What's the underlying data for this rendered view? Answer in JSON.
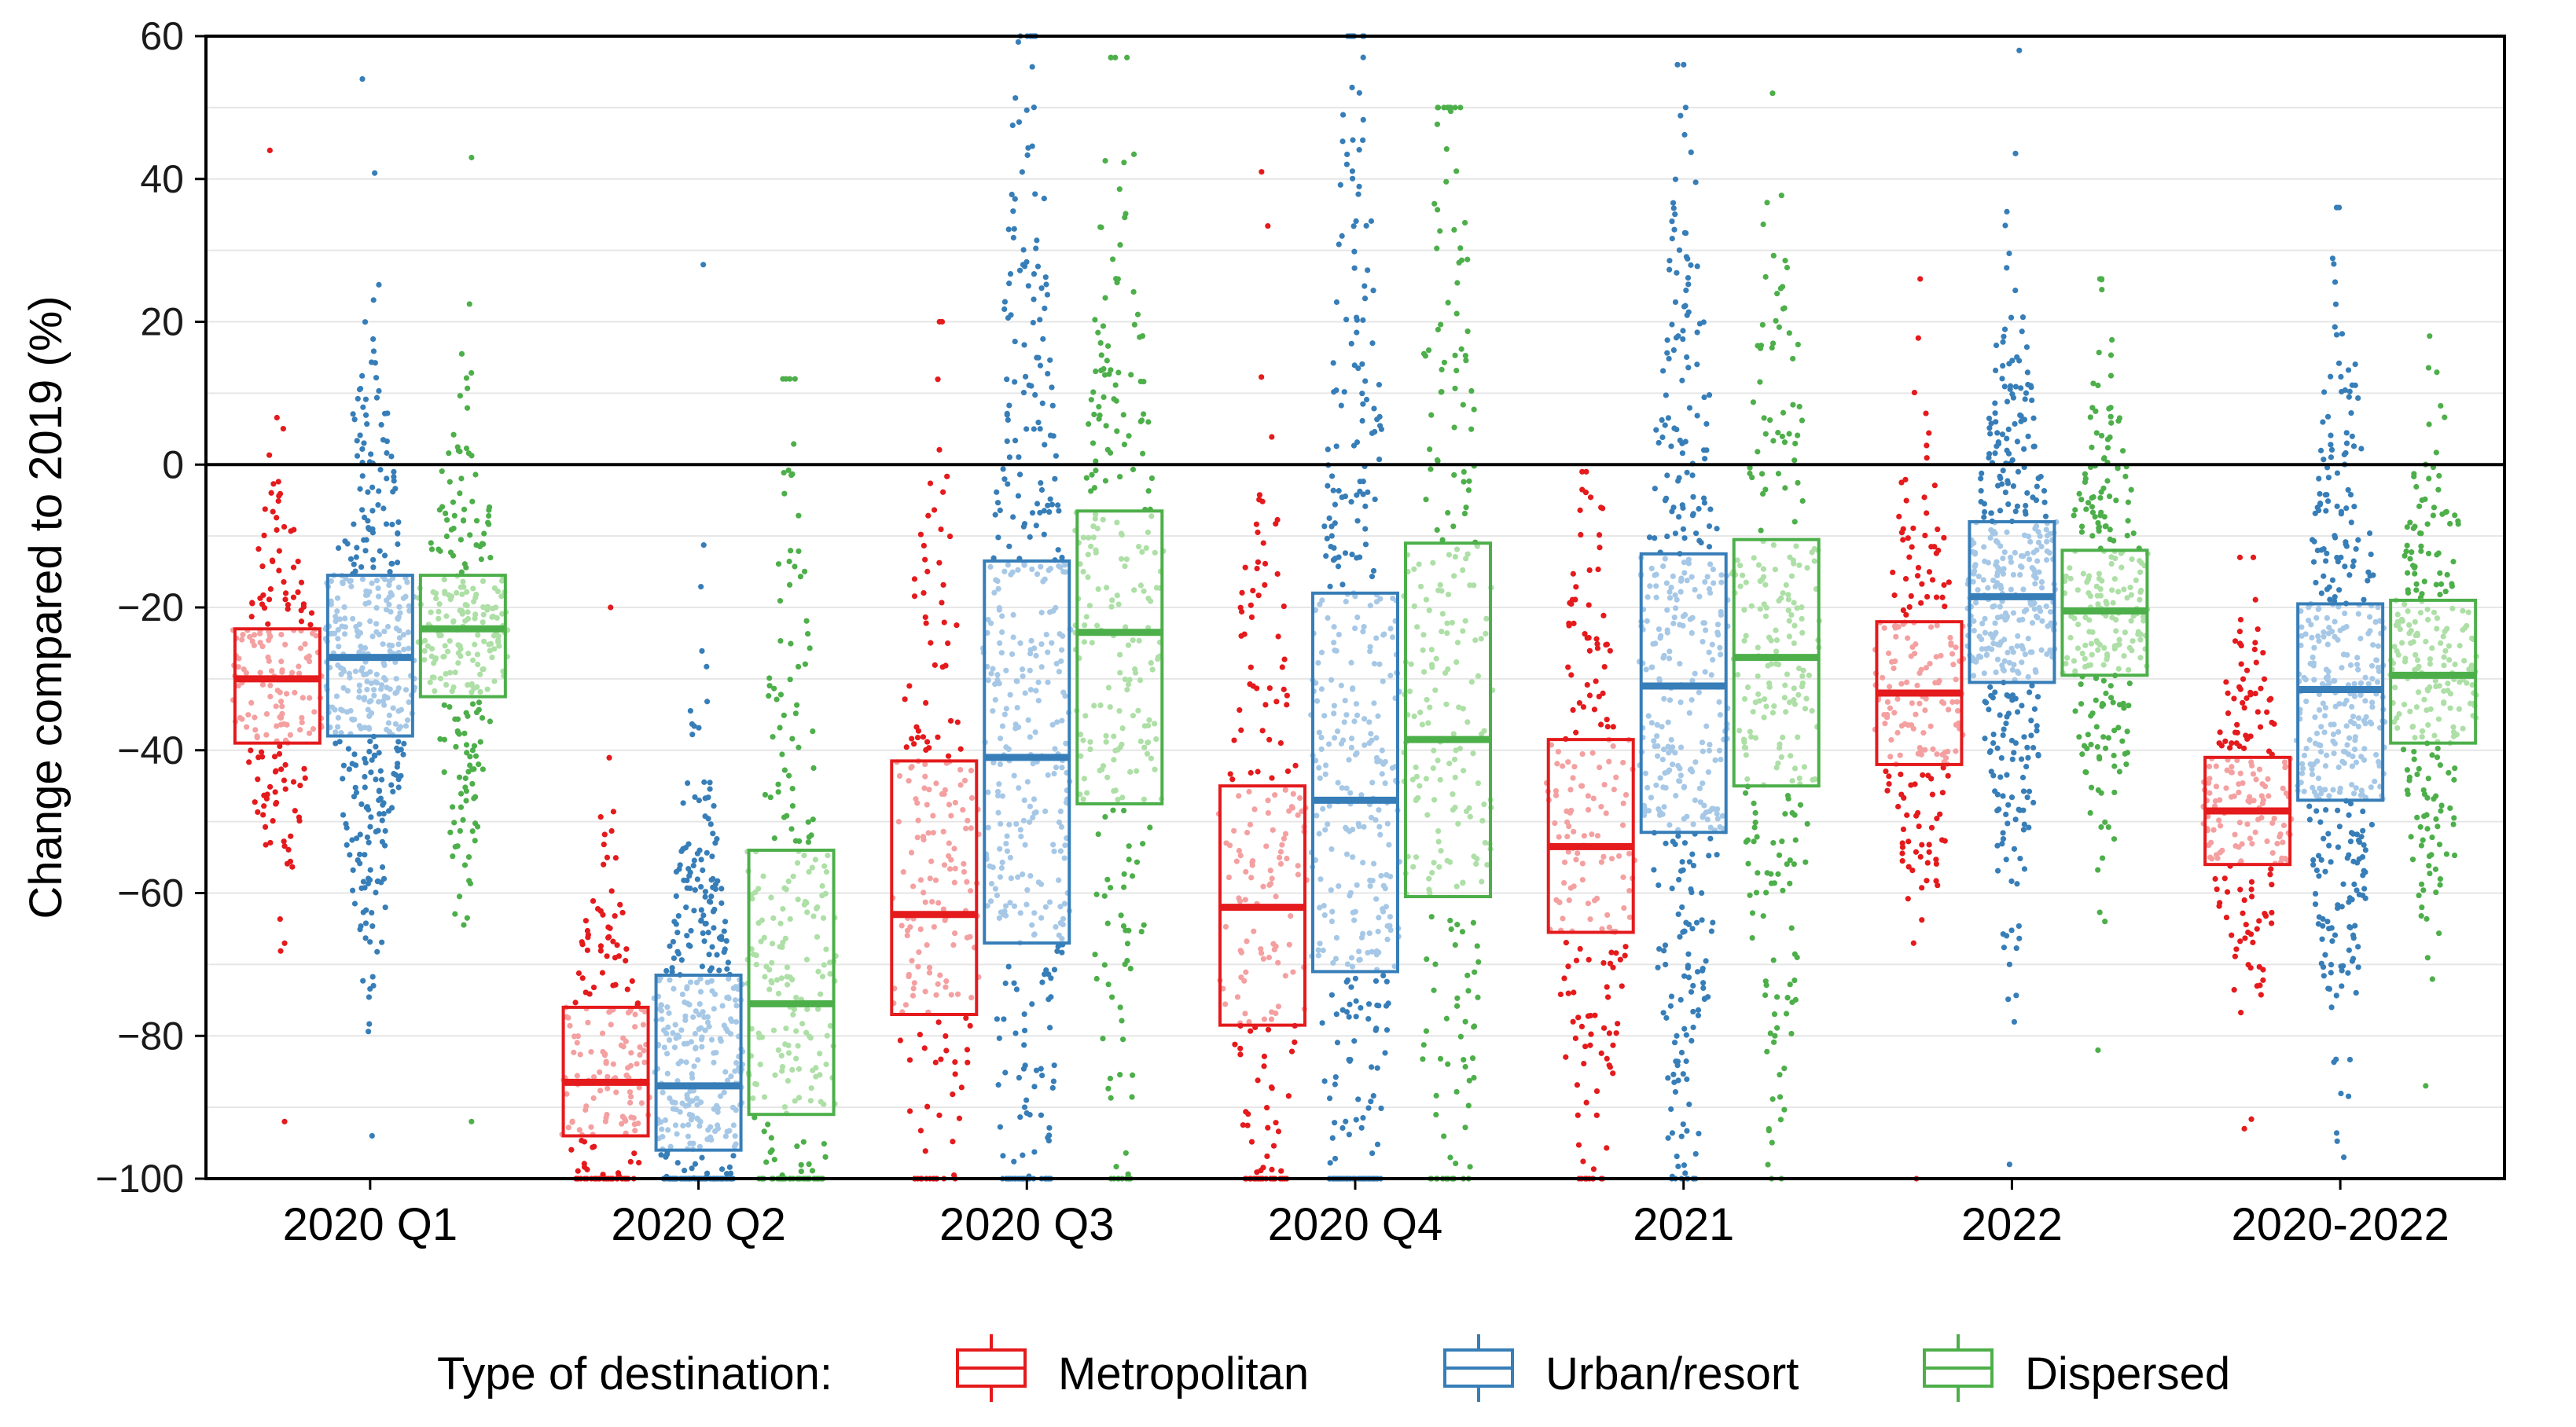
{
  "chart_data": {
    "type": "boxplot",
    "title": "",
    "xlabel": "",
    "ylabel": "Change compared to 2019 (%)",
    "ylim": [
      -100,
      60
    ],
    "yticks": [
      60,
      40,
      20,
      0,
      -20,
      -40,
      -60,
      -80,
      -100
    ],
    "ytick_labels": [
      "60",
      "40",
      "20",
      "0",
      "−20",
      "−40",
      "−60",
      "−80",
      "−100"
    ],
    "reference_line": 0,
    "grid": "horizontal minor gridlines every 10",
    "categories": [
      "2020 Q1",
      "2020 Q2",
      "2020 Q3",
      "2020 Q4",
      "2021",
      "2022",
      "2020-2022"
    ],
    "legend": {
      "title": "Type of destination:",
      "position": "bottom"
    },
    "series": [
      {
        "name": "Metropolitan",
        "color": "#e41a1c",
        "light_color": "#f4a0a1",
        "boxes": [
          {
            "q1": -39,
            "median": -30,
            "q3": -23,
            "min": -92,
            "max": 44
          },
          {
            "q1": -94,
            "median": -86.5,
            "q3": -76,
            "min": -100,
            "max": -20
          },
          {
            "q1": -77,
            "median": -63,
            "q3": -41.5,
            "min": -100,
            "max": 20
          },
          {
            "q1": -78.5,
            "median": -62,
            "q3": -45,
            "min": -100,
            "max": 41
          },
          {
            "q1": -65.5,
            "median": -53.5,
            "q3": -38.5,
            "min": -100,
            "max": -1
          },
          {
            "q1": -42,
            "median": -32,
            "q3": -22,
            "min": -100,
            "max": 26
          },
          {
            "q1": -56,
            "median": -48.5,
            "q3": -41,
            "min": -93,
            "max": -13
          }
        ]
      },
      {
        "name": "Urban/resort",
        "color": "#377eb8",
        "light_color": "#a6c8e6",
        "boxes": [
          {
            "q1": -38,
            "median": -27,
            "q3": -15.5,
            "min": -94,
            "max": 54
          },
          {
            "q1": -96,
            "median": -87,
            "q3": -71.5,
            "min": -100,
            "max": 28
          },
          {
            "q1": -67,
            "median": -41,
            "q3": -13.5,
            "min": -100,
            "max": 60
          },
          {
            "q1": -71,
            "median": -47,
            "q3": -18,
            "min": -100,
            "max": 60
          },
          {
            "q1": -51.5,
            "median": -31,
            "q3": -12.5,
            "min": -100,
            "max": 56
          },
          {
            "q1": -30.5,
            "median": -18.5,
            "q3": -8,
            "min": -98,
            "max": 58
          },
          {
            "q1": -47,
            "median": -31.5,
            "q3": -19.5,
            "min": -97,
            "max": 36
          }
        ]
      },
      {
        "name": "Dispersed",
        "color": "#4daf4a",
        "light_color": "#addfa6",
        "boxes": [
          {
            "q1": -32.5,
            "median": -23,
            "q3": -15.5,
            "min": -92,
            "max": 43
          },
          {
            "q1": -91,
            "median": -75.5,
            "q3": -54,
            "min": -100,
            "max": 12
          },
          {
            "q1": -47.5,
            "median": -23.5,
            "q3": -6.5,
            "min": -100,
            "max": 57
          },
          {
            "q1": -60.5,
            "median": -38.5,
            "q3": -11,
            "min": -100,
            "max": 50
          },
          {
            "q1": -45,
            "median": -27,
            "q3": -10.5,
            "min": -100,
            "max": 52
          },
          {
            "q1": -29.5,
            "median": -20.5,
            "q3": -12,
            "min": -82,
            "max": 26
          },
          {
            "q1": -39,
            "median": -29.5,
            "q3": -19,
            "min": -87,
            "max": 18
          }
        ]
      }
    ]
  }
}
